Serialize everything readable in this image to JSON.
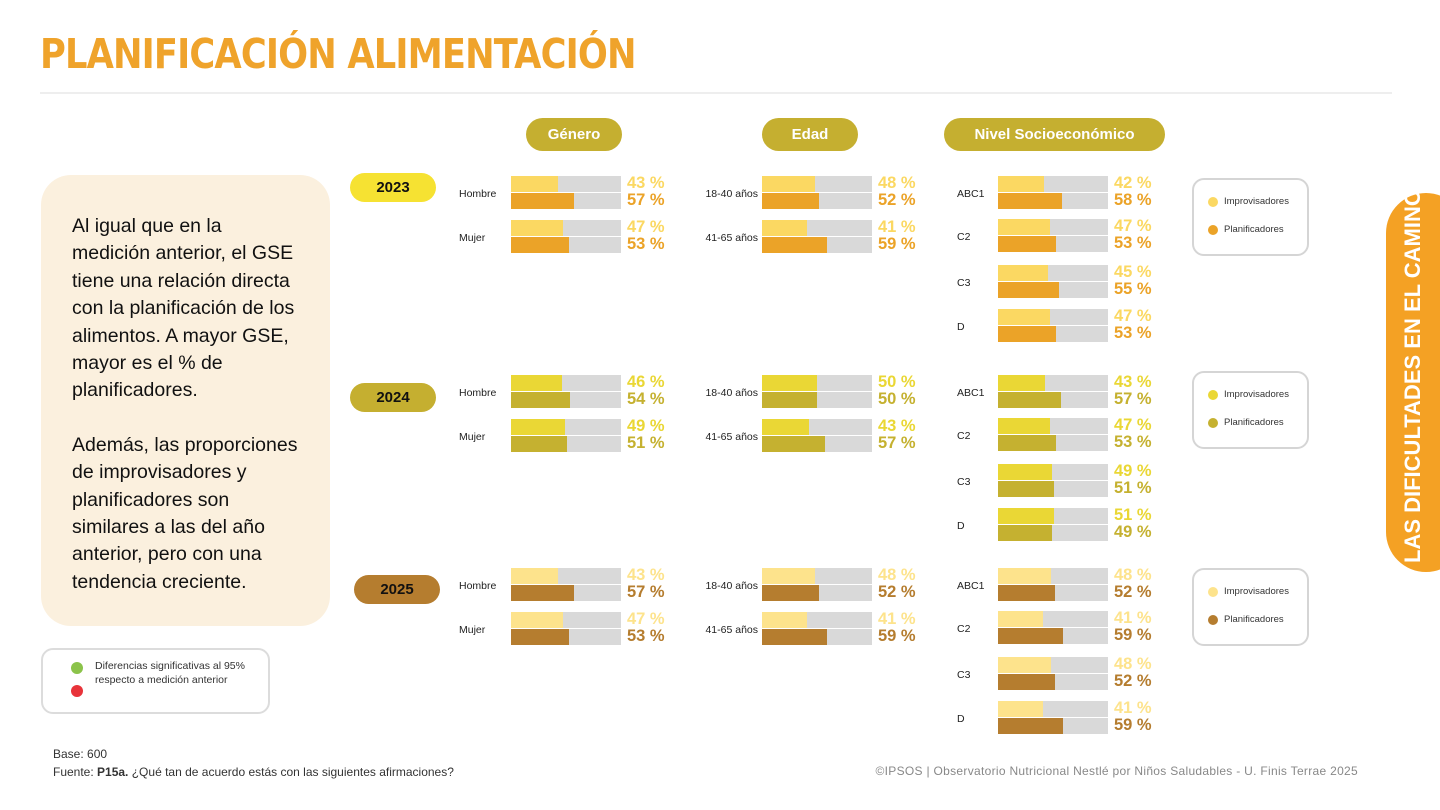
{
  "title": "PLANIFICACIÓN ALIMENTACIÓN",
  "side_tab": "LAS DIFICULTADES EN EL CAMINO",
  "text_box": {
    "paragraph1": "Al igual que en la medición anterior, el GSE tiene una relación directa con la planificación de los alimentos. A mayor GSE, mayor es el % de planificadores.",
    "paragraph2": "Además, las proporciones de improvisadores y planificadores son similares a las del año anterior, pero con una tendencia creciente."
  },
  "significance_legend": {
    "text": "Diferencias significativas al 95% respecto a medición anterior",
    "colors": {
      "up": "#8BC34A",
      "down": "#E8333A"
    }
  },
  "column_headers": {
    "genero": "Género",
    "edad": "Edad",
    "nse": "Nivel Socioeconómico"
  },
  "legend": {
    "improvisadores": "Improvisadores",
    "planificadores": "Planificadores"
  },
  "footer": {
    "base": "Base: 600",
    "fuente_prefix": "Fuente: ",
    "fuente_code": "P15a.",
    "fuente_question": " ¿Qué tan de acuerdo estás con las siguientes afirmaciones?",
    "copyright": "©IPSOS | Observatorio Nutricional Nestlé por Niños Saludables - U. Finis Terrae 2025"
  },
  "chart_data": {
    "type": "bar",
    "unit": "%",
    "series_names": [
      "Improvisadores",
      "Planificadores"
    ],
    "years": [
      {
        "year": "2023",
        "colors": {
          "improvisadores": "#FBD862",
          "planificadores": "#EBA328",
          "pill": "#F6E232"
        },
        "genero": [
          {
            "label": "Hombre",
            "improvisadores": 43,
            "planificadores": 57
          },
          {
            "label": "Mujer",
            "improvisadores": 47,
            "planificadores": 53
          }
        ],
        "edad": [
          {
            "label": "18-40 años",
            "improvisadores": 48,
            "planificadores": 52
          },
          {
            "label": "41-65 años",
            "improvisadores": 41,
            "planificadores": 59
          }
        ],
        "nse": [
          {
            "label": "ABC1",
            "improvisadores": 42,
            "planificadores": 58
          },
          {
            "label": "C2",
            "improvisadores": 47,
            "planificadores": 53
          },
          {
            "label": "C3",
            "improvisadores": 45,
            "planificadores": 55
          },
          {
            "label": "D",
            "improvisadores": 47,
            "planificadores": 53
          }
        ]
      },
      {
        "year": "2024",
        "colors": {
          "improvisadores": "#EAD735",
          "planificadores": "#C5B130",
          "pill": "#C5AF30"
        },
        "genero": [
          {
            "label": "Hombre",
            "improvisadores": 46,
            "planificadores": 54
          },
          {
            "label": "Mujer",
            "improvisadores": 49,
            "planificadores": 51
          }
        ],
        "edad": [
          {
            "label": "18-40 años",
            "improvisadores": 50,
            "planificadores": 50
          },
          {
            "label": "41-65 años",
            "improvisadores": 43,
            "planificadores": 57
          }
        ],
        "nse": [
          {
            "label": "ABC1",
            "improvisadores": 43,
            "planificadores": 57
          },
          {
            "label": "C2",
            "improvisadores": 47,
            "planificadores": 53
          },
          {
            "label": "C3",
            "improvisadores": 49,
            "planificadores": 51
          },
          {
            "label": "D",
            "improvisadores": 51,
            "planificadores": 49
          }
        ]
      },
      {
        "year": "2025",
        "colors": {
          "improvisadores": "#FDE38C",
          "planificadores": "#B57D2F",
          "pill": "#B57D2F"
        },
        "genero": [
          {
            "label": "Hombre",
            "improvisadores": 43,
            "planificadores": 57
          },
          {
            "label": "Mujer",
            "improvisadores": 47,
            "planificadores": 53
          }
        ],
        "edad": [
          {
            "label": "18-40 años",
            "improvisadores": 48,
            "planificadores": 52
          },
          {
            "label": "41-65 años",
            "improvisadores": 41,
            "planificadores": 59
          }
        ],
        "nse": [
          {
            "label": "ABC1",
            "improvisadores": 48,
            "planificadores": 52
          },
          {
            "label": "C2",
            "improvisadores": 41,
            "planificadores": 59
          },
          {
            "label": "C3",
            "improvisadores": 48,
            "planificadores": 52
          },
          {
            "label": "D",
            "improvisadores": 41,
            "planificadores": 59
          }
        ]
      }
    ]
  }
}
